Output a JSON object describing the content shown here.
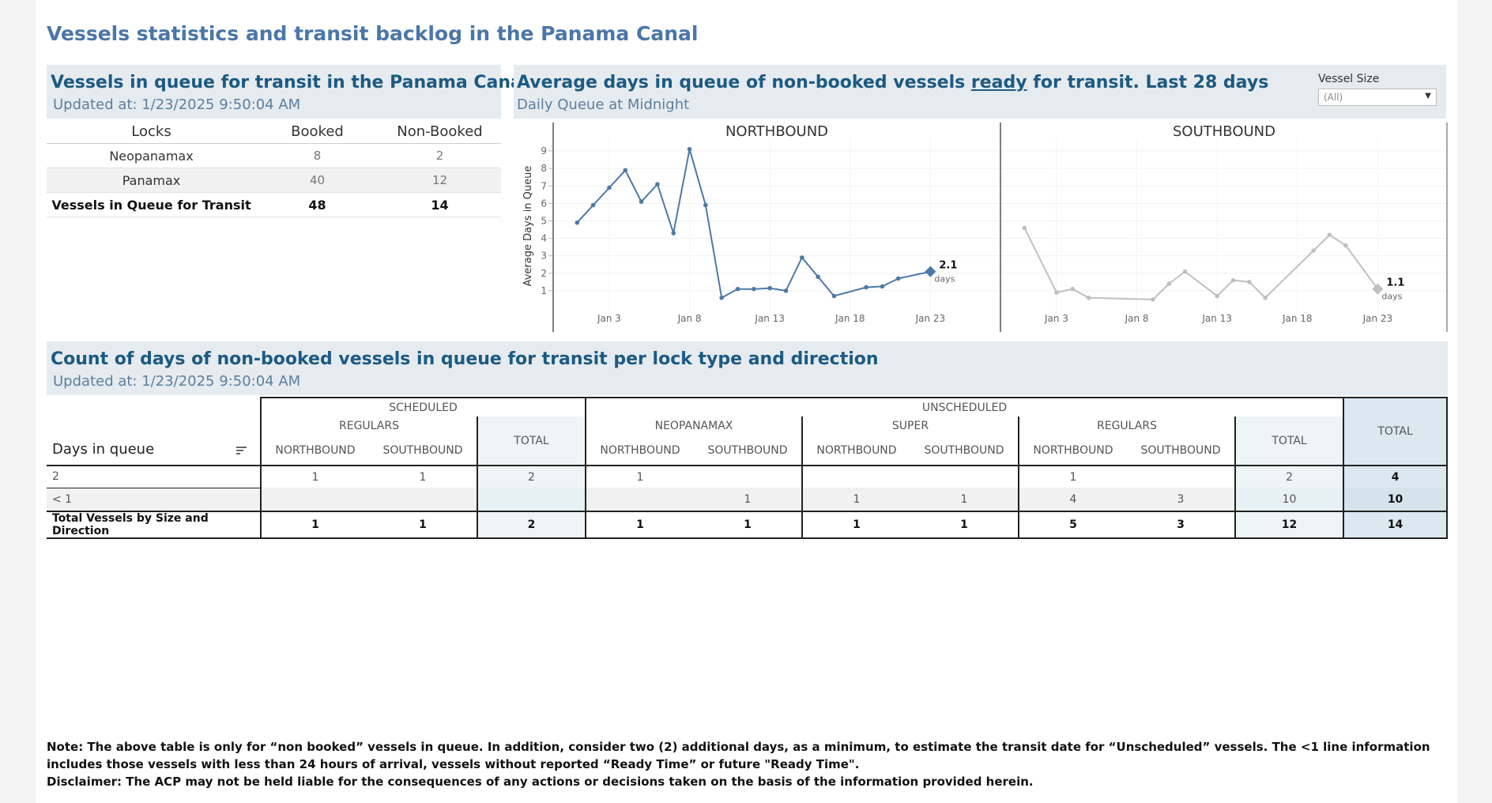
{
  "page_title": "Vessels statistics and transit backlog in the Panama Canal",
  "queue_panel": {
    "title": "Vessels in queue for transit in the Panama Canal",
    "updated": "Updated at:  1/23/2025 9:50:04 AM",
    "columns": [
      "Locks",
      "Booked",
      "Non-Booked"
    ],
    "rows": [
      {
        "lock": "Neopanamax",
        "booked": "8",
        "non_booked": "2"
      },
      {
        "lock": "Panamax",
        "booked": "40",
        "non_booked": "12"
      },
      {
        "lock": "Vessels in Queue for Transit",
        "booked": "48",
        "non_booked": "14"
      }
    ]
  },
  "avg_panel": {
    "title_pre": "Average days in queue of non-booked vessels ",
    "title_link": "ready",
    "title_post": " for transit. Last 28 days",
    "subtitle": "Daily Queue at Midnight",
    "filter_label": "Vessel Size",
    "filter_value": "(All)",
    "filter_icon": "dropdown-arrow-icon",
    "filter_arrow_glyph": "▼"
  },
  "chart_data": {
    "type": "line",
    "ylabel": "Average Days in Queue",
    "yticks": [
      "1",
      "2",
      "3",
      "4",
      "5",
      "6",
      "7",
      "8",
      "9"
    ],
    "ylim": [
      0,
      9.5
    ],
    "xlim": [
      0,
      25
    ],
    "x_ticks": [
      {
        "label": "Jan 3",
        "day": 3
      },
      {
        "label": "Jan 8",
        "day": 8
      },
      {
        "label": "Jan 13",
        "day": 13
      },
      {
        "label": "Jan 18",
        "day": 18
      },
      {
        "label": "Jan 23",
        "day": 23
      }
    ],
    "grid": true,
    "panes": [
      {
        "name": "NORTHBOUND",
        "color": "#4e79a7",
        "end_label": "2.1",
        "end_unit": "days",
        "days": [
          1,
          2,
          3,
          4,
          5,
          6,
          7,
          8,
          9,
          10,
          11,
          12,
          13,
          14,
          15,
          16,
          17,
          19,
          20,
          21,
          23
        ],
        "values": [
          4.9,
          5.9,
          6.9,
          7.9,
          6.1,
          7.1,
          4.3,
          9.1,
          5.9,
          0.6,
          1.1,
          1.1,
          1.15,
          1.0,
          2.9,
          1.8,
          0.7,
          1.2,
          1.25,
          1.7,
          2.1
        ]
      },
      {
        "name": "SOUTHBOUND",
        "color": "#c0c0c0",
        "end_label": "1.1",
        "end_unit": "days",
        "days": [
          1,
          3,
          4,
          5,
          9,
          10,
          11,
          13,
          14,
          15,
          16,
          19,
          20,
          21,
          23
        ],
        "values": [
          4.6,
          0.9,
          1.1,
          0.6,
          0.5,
          1.4,
          2.1,
          0.7,
          1.6,
          1.5,
          0.6,
          3.3,
          4.2,
          3.6,
          1.1
        ]
      }
    ]
  },
  "count_panel": {
    "title": "Count of days of non-booked vessels in queue for transit per lock type and direction",
    "updated": "Updated at:  1/23/2025 9:50:04 AM",
    "headers": {
      "scheduled": "SCHEDULED",
      "unscheduled": "UNSCHEDULED",
      "regulars": "REGULARS",
      "neopanamax": "NEOPANAMAX",
      "super": "SUPER",
      "regulars2": "REGULARS",
      "total": "TOTAL",
      "grand_total": "TOTAL",
      "northbound": "NORTHBOUND",
      "southbound": "SOUTHBOUND",
      "days_in_queue": "Days in queue",
      "sort_icon": "sort-icon"
    },
    "rows": [
      {
        "label": "2",
        "cells": [
          "1",
          "1",
          "2",
          "1",
          "",
          "",
          "",
          "1",
          "",
          "2",
          "4"
        ]
      },
      {
        "label": "< 1",
        "cells": [
          "",
          "",
          "",
          "",
          "1",
          "1",
          "1",
          "4",
          "3",
          "10",
          "10"
        ]
      },
      {
        "label": "Total Vessels by Size and Direction",
        "cells": [
          "1",
          "1",
          "2",
          "1",
          "1",
          "1",
          "1",
          "5",
          "3",
          "12",
          "14"
        ]
      }
    ]
  },
  "notes": {
    "line1": "Note:  The above table is only for “non booked” vessels in queue. In addition, consider two (2) additional days, as a minimum, to estimate the transit date for “Unscheduled” vessels.  The <1 line information includes those vessels with less than 24 hours of arrival, vessels without reported “Ready Time” or future \"Ready Time\".",
    "line2": "Disclaimer: The ACP may not be held liable for the consequences of any actions or decisions taken on the basis of the information provided herein."
  }
}
